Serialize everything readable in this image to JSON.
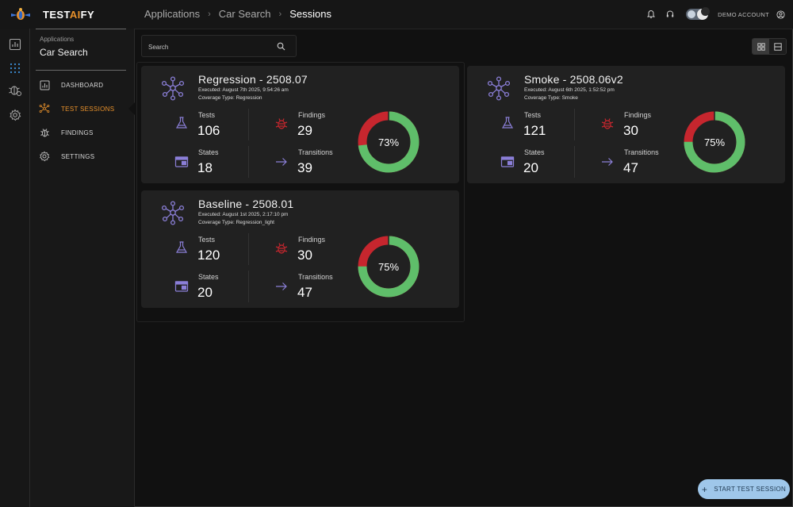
{
  "app": {
    "logo_prefix": "TEST",
    "logo_ai": "AI",
    "logo_suffix": "FY"
  },
  "breadcrumbs": [
    "Applications",
    "Car Search",
    "Sessions"
  ],
  "account": {
    "label": "DEMO ACCOUNT"
  },
  "sidebar": {
    "app_label": "Applications",
    "app_name": "Car Search",
    "items": [
      {
        "label": "DASHBOARD",
        "icon": "dashboard-icon"
      },
      {
        "label": "TEST SESSIONS",
        "icon": "test-sessions-icon",
        "active": true
      },
      {
        "label": "FINDINGS",
        "icon": "bug-icon"
      },
      {
        "label": "SETTINGS",
        "icon": "gear-icon"
      }
    ]
  },
  "search": {
    "placeholder": "Search"
  },
  "labels": {
    "tests": "Tests",
    "findings": "Findings",
    "states": "States",
    "transitions": "Transitions"
  },
  "sessions": [
    {
      "title": "Regression - 2508.07",
      "executed": "Executed: August 7th 2025, 9:54:26 am",
      "coverage": "Coverage Type: Regression",
      "tests": "106",
      "findings": "29",
      "states": "18",
      "transitions": "39",
      "percent_label": "73%",
      "percent": 73
    },
    {
      "title": "Smoke - 2508.06v2",
      "executed": "Executed: August 6th 2025, 1:52:52 pm",
      "coverage": "Coverage Type: Smoke",
      "tests": "121",
      "findings": "30",
      "states": "20",
      "transitions": "47",
      "percent_label": "75%",
      "percent": 75
    },
    {
      "title": "Baseline - 2508.01",
      "executed": "Executed: August 1st 2025, 2:17:10 pm",
      "coverage": "Coverage Type: Regression_light",
      "tests": "120",
      "findings": "30",
      "states": "20",
      "transitions": "47",
      "percent_label": "75%",
      "percent": 75
    }
  ],
  "colors": {
    "accent": "#e8912b",
    "pass": "#5fbe6a",
    "fail": "#c6262e",
    "icon_purple": "#8b7fd8",
    "bug_red": "#c6262e",
    "button": "#9fc7ea"
  },
  "start_button": {
    "label": "START TEST SESSION"
  }
}
